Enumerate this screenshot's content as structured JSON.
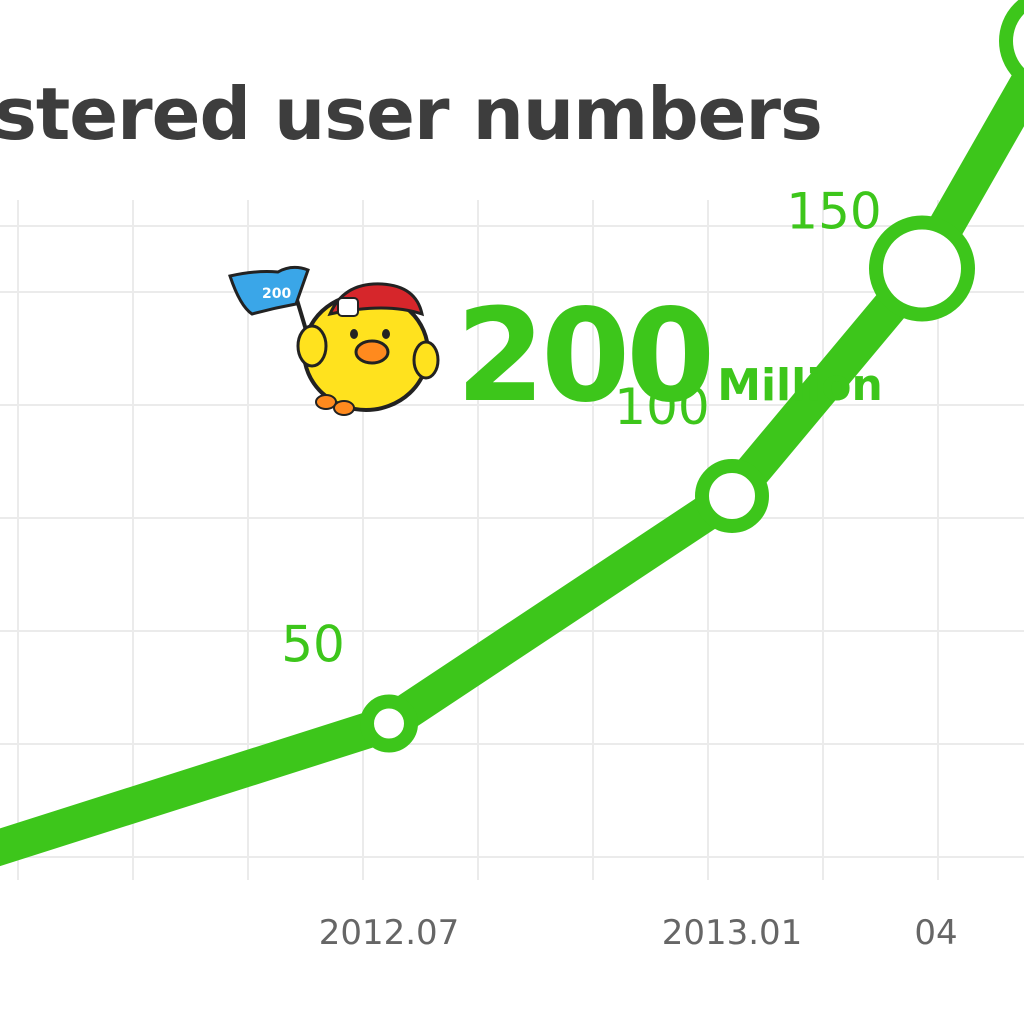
{
  "chart_data": {
    "type": "line",
    "title": "stered user numbers",
    "headline": {
      "value": "200",
      "unit": "Million"
    },
    "x": [
      "",
      "2012.07",
      "2013.01",
      "04",
      ""
    ],
    "x_tick_labels": [
      "2012.07",
      "2013.01",
      "04"
    ],
    "series": [
      {
        "values": [
          null,
          50,
          100,
          150,
          200
        ],
        "point_labels": [
          "",
          "50",
          "100",
          "150",
          ""
        ]
      }
    ],
    "grid": true,
    "colors": {
      "line": "#3dc61b",
      "grid": "#ebebeb",
      "tick_text": "#666666",
      "title_text": "#3d3d3d"
    }
  },
  "mascot": {
    "icon": "chick-with-flag-icon",
    "flag_text": "200"
  }
}
